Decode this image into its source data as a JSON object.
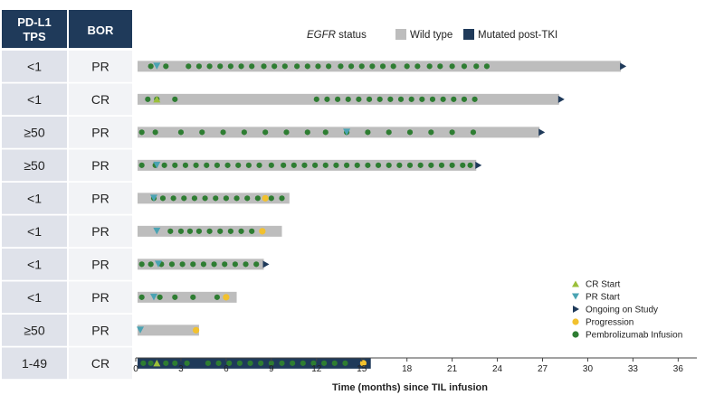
{
  "chart_data": {
    "type": "swimmer",
    "table_headers": {
      "tps": [
        "PD-L1",
        "TPS"
      ],
      "bor": "BOR"
    },
    "xlabel": "Time (months) since TIL infusion",
    "xlim": [
      0,
      37
    ],
    "xticks": [
      0,
      3,
      6,
      9,
      12,
      15,
      18,
      21,
      24,
      27,
      30,
      33,
      36
    ],
    "status_legend": {
      "title_italic": "EGFR",
      "title_rest": " status",
      "items": [
        {
          "label": "Wild type",
          "color": "#bdbdbd"
        },
        {
          "label": "Mutated post-TKI",
          "color": "#1f3a5a"
        }
      ]
    },
    "event_legend": [
      {
        "label": "CR Start",
        "marker": "triangle-up",
        "color": "#9bbf3a"
      },
      {
        "label": "PR Start",
        "marker": "triangle-down",
        "color": "#4aa3b3"
      },
      {
        "label": "Ongoing on Study",
        "marker": "arrow-right",
        "color": "#1f3a5a"
      },
      {
        "label": "Progression",
        "marker": "circle",
        "color": "#f2c12e"
      },
      {
        "label": "Pembrolizumab Infusion",
        "marker": "circle",
        "color": "#2e7d32"
      }
    ],
    "colors": {
      "wild_type": "#bdbdbd",
      "mutated": "#1f3a5a",
      "header": "#1f3a5a",
      "infusion": "#2e7d32",
      "progression": "#f2c12e",
      "pr_start": "#4aa3b3",
      "cr_start": "#9bbf3a",
      "ongoing": "#1f3a5a"
    },
    "patients": [
      {
        "tps": "<1",
        "bor": "PR",
        "status": "wild",
        "end": 32.2,
        "ongoing": true,
        "progression": null,
        "response": {
          "type": "PR",
          "t": 1.4
        },
        "infusions": [
          1.0,
          2.0,
          3.5,
          4.2,
          4.9,
          5.6,
          6.3,
          7.0,
          7.7,
          8.5,
          9.2,
          9.9,
          10.7,
          11.4,
          12.1,
          12.8,
          13.6,
          14.3,
          15.0,
          15.7,
          16.4,
          17.1,
          18.0,
          18.7,
          19.5,
          20.2,
          21.0,
          21.8,
          22.6,
          23.3
        ]
      },
      {
        "tps": "<1",
        "bor": "CR",
        "status": "wild",
        "end": 28.1,
        "ongoing": true,
        "progression": null,
        "response": {
          "type": "CR",
          "t": 1.4
        },
        "infusions": [
          0.8,
          1.4,
          2.6,
          12.0,
          12.7,
          13.4,
          14.1,
          14.8,
          15.5,
          16.2,
          16.9,
          17.6,
          18.3,
          19.0,
          19.7,
          20.4,
          21.1,
          21.8,
          22.5
        ]
      },
      {
        "tps": "≥50",
        "bor": "PR",
        "status": "wild",
        "end": 26.8,
        "ongoing": true,
        "progression": null,
        "response": {
          "type": "PR",
          "t": 14.0
        },
        "infusions": [
          0.4,
          1.3,
          3.0,
          4.4,
          5.8,
          7.2,
          8.6,
          10.0,
          11.4,
          12.6,
          14.0,
          15.4,
          16.8,
          18.2,
          19.6,
          21.0,
          22.4
        ]
      },
      {
        "tps": "≥50",
        "bor": "PR",
        "status": "wild",
        "end": 22.6,
        "ongoing": true,
        "progression": null,
        "response": {
          "type": "PR",
          "t": 1.4
        },
        "infusions": [
          0.4,
          1.3,
          1.9,
          2.6,
          3.3,
          4.0,
          4.7,
          5.4,
          6.1,
          6.8,
          7.5,
          8.2,
          9.0,
          9.8,
          10.5,
          11.2,
          11.9,
          12.6,
          13.3,
          14.0,
          14.7,
          15.4,
          16.1,
          16.8,
          17.5,
          18.2,
          18.9,
          19.6,
          20.3,
          21.0,
          21.7,
          22.2
        ]
      },
      {
        "tps": "<1",
        "bor": "PR",
        "status": "wild",
        "end": 10.2,
        "ongoing": false,
        "progression": 8.6,
        "response": {
          "type": "PR",
          "t": 1.2
        },
        "infusions": [
          1.2,
          1.8,
          2.5,
          3.2,
          3.9,
          4.6,
          5.3,
          6.0,
          6.7,
          7.4,
          8.1,
          9.0,
          9.7
        ]
      },
      {
        "tps": "<1",
        "bor": "PR",
        "status": "wild",
        "end": 9.7,
        "ongoing": false,
        "progression": 8.4,
        "response": {
          "type": "PR",
          "t": 1.4
        },
        "infusions": [
          2.3,
          3.0,
          3.6,
          4.2,
          4.9,
          5.6,
          6.3,
          7.0,
          7.7
        ]
      },
      {
        "tps": "<1",
        "bor": "PR",
        "status": "wild",
        "end": 8.5,
        "ongoing": true,
        "progression": null,
        "response": {
          "type": "PR",
          "t": 1.5
        },
        "infusions": [
          0.4,
          1.0,
          1.7,
          2.4,
          3.1,
          3.8,
          4.5,
          5.2,
          5.9,
          6.6,
          7.3,
          8.0
        ]
      },
      {
        "tps": "<1",
        "bor": "PR",
        "status": "wild",
        "end": 6.7,
        "ongoing": false,
        "progression": 6.0,
        "response": {
          "type": "PR",
          "t": 1.2
        },
        "infusions": [
          0.4,
          1.6,
          2.6,
          3.8,
          5.4
        ]
      },
      {
        "tps": "≥50",
        "bor": "PR",
        "status": "wild",
        "end": 4.2,
        "ongoing": false,
        "progression": 4.0,
        "response": {
          "type": "PR",
          "t": 0.3
        },
        "infusions": []
      },
      {
        "tps": "1-49",
        "bor": "CR",
        "status": "mutated",
        "end": 15.6,
        "ongoing": false,
        "progression": 15.1,
        "response": {
          "type": "CR",
          "t": 1.4
        },
        "infusions": [
          0.5,
          1.0,
          2.0,
          2.6,
          3.4,
          4.8,
          5.5,
          6.2,
          6.9,
          7.6,
          8.3,
          9.0,
          9.7,
          10.4,
          11.1,
          11.8,
          12.5,
          13.2,
          13.9
        ]
      }
    ]
  }
}
